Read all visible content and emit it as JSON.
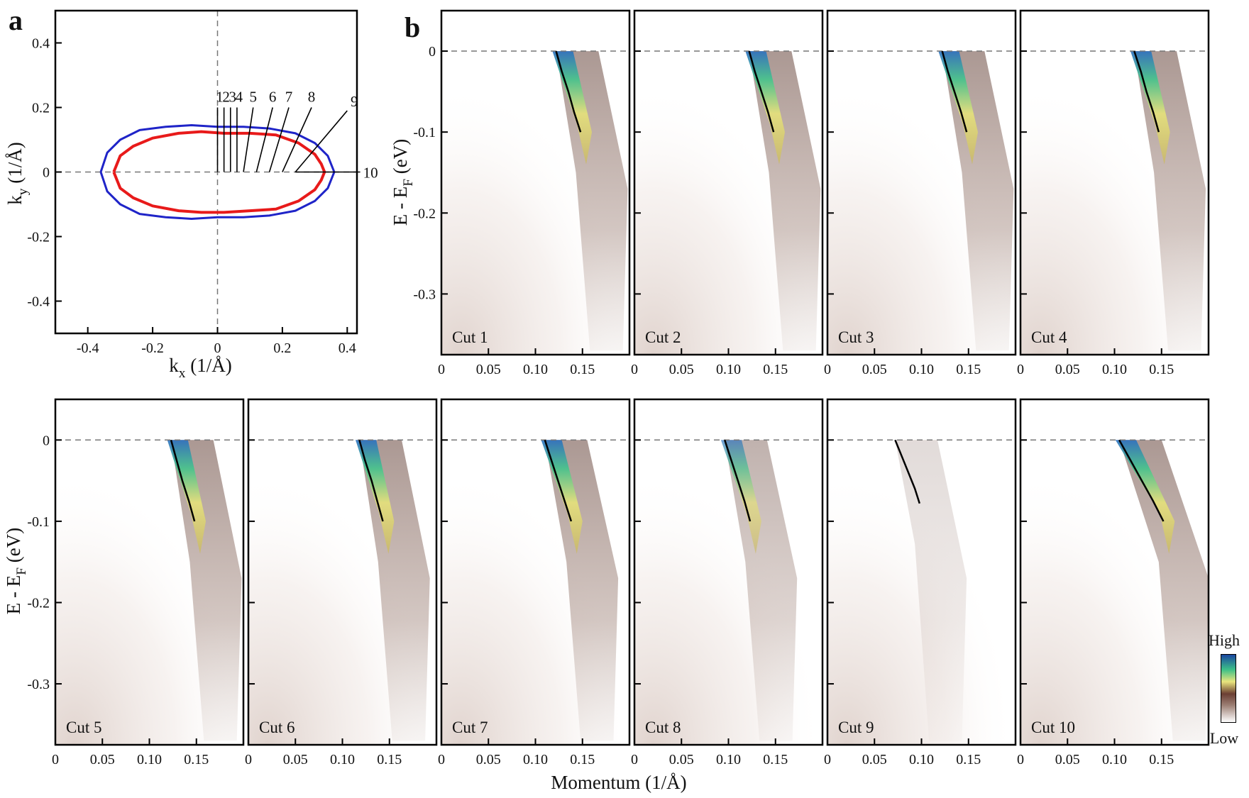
{
  "panel_labels": {
    "a": "a",
    "b": "b"
  },
  "colorbar": {
    "high": "High",
    "low": "Low"
  },
  "colors": {
    "inner_contour": "#e81a1a",
    "outer_contour": "#1f24c8",
    "dispersion": "#000000"
  },
  "chart_data": [
    {
      "type": "line",
      "panel": "a",
      "title": "",
      "xlabel": "k",
      "xlabel_sub": "x",
      "xlabel_unit": "(1/Å)",
      "ylabel": "k",
      "ylabel_sub": "y",
      "ylabel_unit": "(1/Å)",
      "xlim": [
        -0.5,
        0.43
      ],
      "ylim": [
        -0.5,
        0.5
      ],
      "xticks": [
        -0.4,
        -0.2,
        0,
        0.2,
        0.4
      ],
      "xtick_labels": [
        "-0.4",
        "-0.2",
        "0",
        "0.2",
        "0.4"
      ],
      "yticks": [
        -0.4,
        -0.2,
        0,
        0.2,
        0.4
      ],
      "ytick_labels": [
        "-0.4",
        "-0.2",
        "0",
        "0.2",
        "0.4"
      ],
      "series": [
        {
          "name": "outer contour",
          "color": "#1f24c8",
          "x": [
            -0.36,
            -0.34,
            -0.3,
            -0.24,
            -0.16,
            -0.08,
            0.0,
            0.08,
            0.16,
            0.24,
            0.3,
            0.34,
            0.36,
            0.34,
            0.3,
            0.24,
            0.16,
            0.08,
            0.0,
            -0.08,
            -0.16,
            -0.24,
            -0.3,
            -0.34,
            -0.36
          ],
          "y": [
            0.0,
            0.06,
            0.1,
            0.13,
            0.14,
            0.145,
            0.14,
            0.14,
            0.135,
            0.12,
            0.09,
            0.05,
            0.0,
            -0.05,
            -0.09,
            -0.12,
            -0.135,
            -0.14,
            -0.14,
            -0.145,
            -0.14,
            -0.13,
            -0.1,
            -0.06,
            0.0
          ]
        },
        {
          "name": "inner contour",
          "color": "#e81a1a",
          "x": [
            -0.32,
            -0.3,
            -0.26,
            -0.2,
            -0.12,
            -0.05,
            0.02,
            0.1,
            0.18,
            0.25,
            0.3,
            0.32,
            0.33,
            0.32,
            0.3,
            0.25,
            0.18,
            0.1,
            0.02,
            -0.05,
            -0.12,
            -0.2,
            -0.26,
            -0.3,
            -0.32
          ],
          "y": [
            0.0,
            0.05,
            0.08,
            0.105,
            0.12,
            0.125,
            0.12,
            0.12,
            0.115,
            0.09,
            0.055,
            0.025,
            0.0,
            -0.025,
            -0.055,
            -0.09,
            -0.115,
            -0.12,
            -0.125,
            -0.125,
            -0.12,
            -0.105,
            -0.08,
            -0.05,
            0.0
          ]
        }
      ],
      "cuts": [
        {
          "label": "1",
          "start": [
            0.0,
            0.0
          ],
          "end": [
            0.0,
            0.2
          ]
        },
        {
          "label": "2",
          "start": [
            0.02,
            0.0
          ],
          "end": [
            0.02,
            0.2
          ]
        },
        {
          "label": "3",
          "start": [
            0.04,
            0.0
          ],
          "end": [
            0.04,
            0.2
          ]
        },
        {
          "label": "4",
          "start": [
            0.06,
            0.0
          ],
          "end": [
            0.06,
            0.2
          ]
        },
        {
          "label": "5",
          "start": [
            0.08,
            0.0
          ],
          "end": [
            0.11,
            0.2
          ]
        },
        {
          "label": "6",
          "start": [
            0.12,
            0.0
          ],
          "end": [
            0.17,
            0.2
          ]
        },
        {
          "label": "7",
          "start": [
            0.16,
            0.0
          ],
          "end": [
            0.22,
            0.2
          ]
        },
        {
          "label": "8",
          "start": [
            0.2,
            0.0
          ],
          "end": [
            0.29,
            0.2
          ]
        },
        {
          "label": "9",
          "start": [
            0.24,
            0.0
          ],
          "end": [
            0.4,
            0.19
          ]
        },
        {
          "label": "10",
          "start": [
            0.24,
            0.0
          ],
          "end": [
            0.44,
            0.0
          ]
        }
      ]
    },
    {
      "type": "heatmap",
      "panel": "b",
      "title": "",
      "xlabel": "Momentum (1/Å)",
      "ylabel": "E - E",
      "ylabel_sub": "F",
      "ylabel_unit": "(eV)",
      "xlim": [
        0,
        0.2
      ],
      "ylim": [
        -0.375,
        0.05
      ],
      "xticks": [
        0,
        0.05,
        0.1,
        0.15
      ],
      "xtick_labels": [
        "0",
        "0.05",
        "0.10",
        "0.15"
      ],
      "yticks": [
        0,
        -0.1,
        -0.2,
        -0.3
      ],
      "ytick_labels": [
        "0",
        "-0.1",
        "-0.2",
        "-0.3"
      ],
      "fermi_level": 0,
      "colorbar_labels": [
        "High",
        "Low"
      ],
      "cuts": [
        {
          "label": "Cut 1",
          "dispersion": {
            "k": [
              0.122,
              0.128,
              0.135,
              0.141,
              0.148
            ],
            "E": [
              0.0,
              -0.025,
              -0.05,
              -0.075,
              -0.1
            ]
          }
        },
        {
          "label": "Cut 2",
          "dispersion": {
            "k": [
              0.122,
              0.128,
              0.135,
              0.142,
              0.148
            ],
            "E": [
              0.0,
              -0.025,
              -0.05,
              -0.075,
              -0.1
            ]
          }
        },
        {
          "label": "Cut 3",
          "dispersion": {
            "k": [
              0.122,
              0.128,
              0.135,
              0.142,
              0.148
            ],
            "E": [
              0.0,
              -0.025,
              -0.05,
              -0.075,
              -0.1
            ]
          }
        },
        {
          "label": "Cut 4",
          "dispersion": {
            "k": [
              0.121,
              0.128,
              0.134,
              0.141,
              0.147
            ],
            "E": [
              0.0,
              -0.025,
              -0.05,
              -0.075,
              -0.1
            ]
          }
        },
        {
          "label": "Cut 5",
          "dispersion": {
            "k": [
              0.123,
              0.129,
              0.135,
              0.142,
              0.148
            ],
            "E": [
              0.0,
              -0.025,
              -0.05,
              -0.075,
              -0.1
            ]
          }
        },
        {
          "label": "Cut 6",
          "dispersion": {
            "k": [
              0.118,
              0.124,
              0.131,
              0.137,
              0.143
            ],
            "E": [
              0.0,
              -0.025,
              -0.05,
              -0.075,
              -0.1
            ]
          }
        },
        {
          "label": "Cut 7",
          "dispersion": {
            "k": [
              0.11,
              0.117,
              0.124,
              0.131,
              0.138
            ],
            "E": [
              0.0,
              -0.025,
              -0.05,
              -0.075,
              -0.1
            ]
          }
        },
        {
          "label": "Cut 8",
          "dispersion": {
            "k": [
              0.096,
              0.103,
              0.11,
              0.117,
              0.123
            ],
            "E": [
              0.0,
              -0.025,
              -0.05,
              -0.075,
              -0.1
            ]
          }
        },
        {
          "label": "Cut 9",
          "dispersion": {
            "k": [
              0.072,
              0.079,
              0.086,
              0.093,
              0.098
            ],
            "E": [
              0.0,
              -0.02,
              -0.04,
              -0.06,
              -0.078
            ]
          }
        },
        {
          "label": "Cut 10",
          "dispersion": {
            "k": [
              0.105,
              0.117,
              0.129,
              0.141,
              0.152
            ],
            "E": [
              0.0,
              -0.025,
              -0.05,
              -0.075,
              -0.1
            ]
          }
        }
      ]
    }
  ]
}
